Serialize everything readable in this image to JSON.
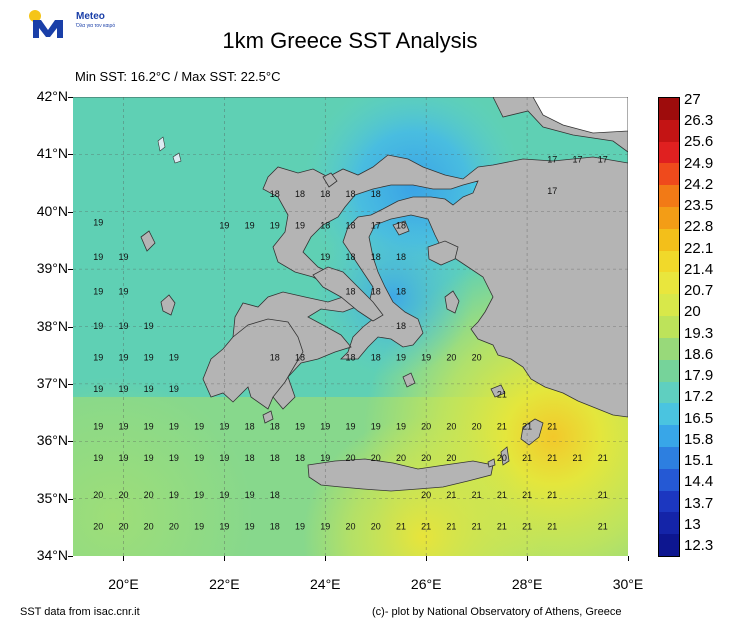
{
  "brand": {
    "name": "Meteo",
    "tagline": "Όλα για τον καιρό"
  },
  "title": "1km Greece SST Analysis",
  "subtitle": "Min SST: 16.2°C / Max SST: 22.5°C",
  "footer": {
    "source": "SST data from isac.cnr.it",
    "credit": "(c)- plot by National Observatory of Athens, Greece"
  },
  "colors": {
    "land": "#b4b4b4",
    "coast": "#333333",
    "lake": "#dcebf2"
  },
  "map": {
    "lon_range": [
      19,
      30
    ],
    "lat_range": [
      34,
      42
    ],
    "lat_ticks": [
      "42°N",
      "41°N",
      "40°N",
      "39°N",
      "38°N",
      "37°N",
      "36°N",
      "35°N",
      "34°N"
    ],
    "lon_ticks": [
      "20°E",
      "22°E",
      "24°E",
      "26°E",
      "28°E",
      "30°E"
    ],
    "sst_labels": [
      {
        "lon": 28.5,
        "lat": 40.9,
        "t": "17"
      },
      {
        "lon": 29.0,
        "lat": 40.9,
        "t": "17"
      },
      {
        "lon": 29.5,
        "lat": 40.9,
        "t": "17"
      },
      {
        "lon": 28.5,
        "lat": 40.35,
        "t": "17"
      },
      {
        "lon": 23.0,
        "lat": 40.3,
        "t": "18"
      },
      {
        "lon": 23.5,
        "lat": 40.3,
        "t": "18"
      },
      {
        "lon": 24.0,
        "lat": 40.3,
        "t": "18"
      },
      {
        "lon": 24.5,
        "lat": 40.3,
        "t": "18"
      },
      {
        "lon": 25.0,
        "lat": 40.3,
        "t": "18"
      },
      {
        "lon": 19.5,
        "lat": 39.8,
        "t": "19"
      },
      {
        "lon": 22.0,
        "lat": 39.75,
        "t": "19"
      },
      {
        "lon": 22.5,
        "lat": 39.75,
        "t": "19"
      },
      {
        "lon": 23.0,
        "lat": 39.75,
        "t": "19"
      },
      {
        "lon": 23.5,
        "lat": 39.75,
        "t": "19"
      },
      {
        "lon": 24.0,
        "lat": 39.75,
        "t": "18"
      },
      {
        "lon": 24.5,
        "lat": 39.75,
        "t": "18"
      },
      {
        "lon": 25.0,
        "lat": 39.75,
        "t": "17"
      },
      {
        "lon": 25.5,
        "lat": 39.75,
        "t": "18"
      },
      {
        "lon": 19.5,
        "lat": 39.2,
        "t": "19"
      },
      {
        "lon": 20.0,
        "lat": 39.2,
        "t": "19"
      },
      {
        "lon": 24.0,
        "lat": 39.2,
        "t": "19"
      },
      {
        "lon": 24.5,
        "lat": 39.2,
        "t": "18"
      },
      {
        "lon": 25.0,
        "lat": 39.2,
        "t": "18"
      },
      {
        "lon": 25.5,
        "lat": 39.2,
        "t": "18"
      },
      {
        "lon": 19.5,
        "lat": 38.6,
        "t": "19"
      },
      {
        "lon": 20.0,
        "lat": 38.6,
        "t": "19"
      },
      {
        "lon": 24.5,
        "lat": 38.6,
        "t": "18"
      },
      {
        "lon": 25.0,
        "lat": 38.6,
        "t": "18"
      },
      {
        "lon": 25.5,
        "lat": 38.6,
        "t": "18"
      },
      {
        "lon": 19.5,
        "lat": 38.0,
        "t": "19"
      },
      {
        "lon": 20.0,
        "lat": 38.0,
        "t": "19"
      },
      {
        "lon": 20.5,
        "lat": 38.0,
        "t": "19"
      },
      {
        "lon": 25.5,
        "lat": 38.0,
        "t": "18"
      },
      {
        "lon": 19.5,
        "lat": 37.45,
        "t": "19"
      },
      {
        "lon": 20.0,
        "lat": 37.45,
        "t": "19"
      },
      {
        "lon": 20.5,
        "lat": 37.45,
        "t": "19"
      },
      {
        "lon": 21.0,
        "lat": 37.45,
        "t": "19"
      },
      {
        "lon": 23.0,
        "lat": 37.45,
        "t": "18"
      },
      {
        "lon": 23.5,
        "lat": 37.45,
        "t": "18"
      },
      {
        "lon": 24.5,
        "lat": 37.45,
        "t": "18"
      },
      {
        "lon": 25.0,
        "lat": 37.45,
        "t": "18"
      },
      {
        "lon": 25.5,
        "lat": 37.45,
        "t": "19"
      },
      {
        "lon": 26.0,
        "lat": 37.45,
        "t": "19"
      },
      {
        "lon": 26.5,
        "lat": 37.45,
        "t": "20"
      },
      {
        "lon": 27.0,
        "lat": 37.45,
        "t": "20"
      },
      {
        "lon": 19.5,
        "lat": 36.9,
        "t": "19"
      },
      {
        "lon": 20.0,
        "lat": 36.9,
        "t": "19"
      },
      {
        "lon": 20.5,
        "lat": 36.9,
        "t": "19"
      },
      {
        "lon": 21.0,
        "lat": 36.9,
        "t": "19"
      },
      {
        "lon": 27.5,
        "lat": 36.8,
        "t": "21"
      },
      {
        "lon": 19.5,
        "lat": 36.25,
        "t": "19"
      },
      {
        "lon": 20.0,
        "lat": 36.25,
        "t": "19"
      },
      {
        "lon": 20.5,
        "lat": 36.25,
        "t": "19"
      },
      {
        "lon": 21.0,
        "lat": 36.25,
        "t": "19"
      },
      {
        "lon": 21.5,
        "lat": 36.25,
        "t": "19"
      },
      {
        "lon": 22.0,
        "lat": 36.25,
        "t": "19"
      },
      {
        "lon": 22.5,
        "lat": 36.25,
        "t": "18"
      },
      {
        "lon": 23.0,
        "lat": 36.25,
        "t": "18"
      },
      {
        "lon": 23.5,
        "lat": 36.25,
        "t": "19"
      },
      {
        "lon": 24.0,
        "lat": 36.25,
        "t": "19"
      },
      {
        "lon": 24.5,
        "lat": 36.25,
        "t": "19"
      },
      {
        "lon": 25.0,
        "lat": 36.25,
        "t": "19"
      },
      {
        "lon": 25.5,
        "lat": 36.25,
        "t": "19"
      },
      {
        "lon": 26.0,
        "lat": 36.25,
        "t": "20"
      },
      {
        "lon": 26.5,
        "lat": 36.25,
        "t": "20"
      },
      {
        "lon": 27.0,
        "lat": 36.25,
        "t": "20"
      },
      {
        "lon": 27.5,
        "lat": 36.25,
        "t": "21"
      },
      {
        "lon": 28.0,
        "lat": 36.25,
        "t": "21"
      },
      {
        "lon": 28.5,
        "lat": 36.25,
        "t": "21"
      },
      {
        "lon": 19.5,
        "lat": 35.7,
        "t": "19"
      },
      {
        "lon": 20.0,
        "lat": 35.7,
        "t": "19"
      },
      {
        "lon": 20.5,
        "lat": 35.7,
        "t": "19"
      },
      {
        "lon": 21.0,
        "lat": 35.7,
        "t": "19"
      },
      {
        "lon": 21.5,
        "lat": 35.7,
        "t": "19"
      },
      {
        "lon": 22.0,
        "lat": 35.7,
        "t": "19"
      },
      {
        "lon": 22.5,
        "lat": 35.7,
        "t": "18"
      },
      {
        "lon": 23.0,
        "lat": 35.7,
        "t": "18"
      },
      {
        "lon": 23.5,
        "lat": 35.7,
        "t": "18"
      },
      {
        "lon": 24.0,
        "lat": 35.7,
        "t": "19"
      },
      {
        "lon": 24.5,
        "lat": 35.7,
        "t": "20"
      },
      {
        "lon": 25.0,
        "lat": 35.7,
        "t": "20"
      },
      {
        "lon": 25.5,
        "lat": 35.7,
        "t": "20"
      },
      {
        "lon": 26.0,
        "lat": 35.7,
        "t": "20"
      },
      {
        "lon": 26.5,
        "lat": 35.7,
        "t": "20"
      },
      {
        "lon": 27.5,
        "lat": 35.7,
        "t": "20"
      },
      {
        "lon": 28.0,
        "lat": 35.7,
        "t": "21"
      },
      {
        "lon": 28.5,
        "lat": 35.7,
        "t": "21"
      },
      {
        "lon": 29.0,
        "lat": 35.7,
        "t": "21"
      },
      {
        "lon": 29.5,
        "lat": 35.7,
        "t": "21"
      },
      {
        "lon": 19.5,
        "lat": 35.05,
        "t": "20"
      },
      {
        "lon": 20.0,
        "lat": 35.05,
        "t": "20"
      },
      {
        "lon": 20.5,
        "lat": 35.05,
        "t": "20"
      },
      {
        "lon": 21.0,
        "lat": 35.05,
        "t": "19"
      },
      {
        "lon": 21.5,
        "lat": 35.05,
        "t": "19"
      },
      {
        "lon": 22.0,
        "lat": 35.05,
        "t": "19"
      },
      {
        "lon": 22.5,
        "lat": 35.05,
        "t": "19"
      },
      {
        "lon": 23.0,
        "lat": 35.05,
        "t": "18"
      },
      {
        "lon": 26.0,
        "lat": 35.05,
        "t": "20"
      },
      {
        "lon": 26.5,
        "lat": 35.05,
        "t": "21"
      },
      {
        "lon": 27.0,
        "lat": 35.05,
        "t": "21"
      },
      {
        "lon": 27.5,
        "lat": 35.05,
        "t": "21"
      },
      {
        "lon": 28.0,
        "lat": 35.05,
        "t": "21"
      },
      {
        "lon": 28.5,
        "lat": 35.05,
        "t": "21"
      },
      {
        "lon": 29.5,
        "lat": 35.05,
        "t": "21"
      },
      {
        "lon": 19.5,
        "lat": 34.5,
        "t": "20"
      },
      {
        "lon": 20.0,
        "lat": 34.5,
        "t": "20"
      },
      {
        "lon": 20.5,
        "lat": 34.5,
        "t": "20"
      },
      {
        "lon": 21.0,
        "lat": 34.5,
        "t": "20"
      },
      {
        "lon": 21.5,
        "lat": 34.5,
        "t": "19"
      },
      {
        "lon": 22.0,
        "lat": 34.5,
        "t": "19"
      },
      {
        "lon": 22.5,
        "lat": 34.5,
        "t": "19"
      },
      {
        "lon": 23.0,
        "lat": 34.5,
        "t": "18"
      },
      {
        "lon": 23.5,
        "lat": 34.5,
        "t": "19"
      },
      {
        "lon": 24.0,
        "lat": 34.5,
        "t": "19"
      },
      {
        "lon": 24.5,
        "lat": 34.5,
        "t": "20"
      },
      {
        "lon": 25.0,
        "lat": 34.5,
        "t": "20"
      },
      {
        "lon": 25.5,
        "lat": 34.5,
        "t": "21"
      },
      {
        "lon": 26.0,
        "lat": 34.5,
        "t": "21"
      },
      {
        "lon": 26.5,
        "lat": 34.5,
        "t": "21"
      },
      {
        "lon": 27.0,
        "lat": 34.5,
        "t": "21"
      },
      {
        "lon": 27.5,
        "lat": 34.5,
        "t": "21"
      },
      {
        "lon": 28.0,
        "lat": 34.5,
        "t": "21"
      },
      {
        "lon": 28.5,
        "lat": 34.5,
        "t": "21"
      },
      {
        "lon": 29.5,
        "lat": 34.5,
        "t": "21"
      }
    ]
  },
  "colorbar": {
    "labels": [
      "27",
      "26.3",
      "25.6",
      "24.9",
      "24.2",
      "23.5",
      "22.8",
      "22.1",
      "21.4",
      "20.7",
      "20",
      "19.3",
      "18.6",
      "17.9",
      "17.2",
      "16.5",
      "15.8",
      "15.1",
      "14.4",
      "13.7",
      "13",
      "12.3"
    ],
    "stops": [
      "#9e0c0c",
      "#c41414",
      "#e02020",
      "#ef4a1c",
      "#f27a16",
      "#f39d16",
      "#f3bf1a",
      "#f1d92a",
      "#e9e63d",
      "#d8e84a",
      "#bde35a",
      "#98d97a",
      "#76d39a",
      "#5fcfc0",
      "#4ac4e0",
      "#38a6e8",
      "#2d7fe0",
      "#2559d4",
      "#1c37c0",
      "#1424a8",
      "#0d1690"
    ]
  }
}
